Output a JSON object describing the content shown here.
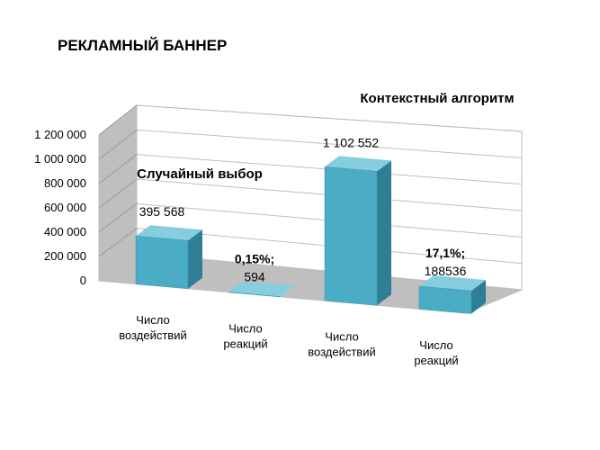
{
  "chart_data": {
    "type": "bar",
    "title": "РЕКЛАМНЫЙ БАННЕР",
    "ylim": [
      0,
      1200000
    ],
    "y_ticks": [
      "0",
      "200 000",
      "400 000",
      "600 000",
      "800 000",
      "1 000 000",
      "1 200 000"
    ],
    "groups": [
      {
        "label": "Случайный выбор"
      },
      {
        "label": "Контекстный алгоритм"
      }
    ],
    "categories": [
      [
        "Число",
        "воздействий"
      ],
      [
        "Число",
        "реакций"
      ],
      [
        "Число",
        "воздействий"
      ],
      [
        "Число",
        "реакций"
      ]
    ],
    "values": [
      395568,
      594,
      1102552,
      188536
    ],
    "data_labels": [
      {
        "pct": "",
        "value": "395 568"
      },
      {
        "pct": "0,15%;",
        "value": "594"
      },
      {
        "pct": "",
        "value": "1 102 552"
      },
      {
        "pct": "17,1%;",
        "value": "188536"
      }
    ],
    "grid": true,
    "colors": {
      "bar_front": "#4BACC6",
      "bar_side": "#2E7F95",
      "bar_top": "#86CDDF",
      "floor": "#BFBFBF",
      "wall": "#FFFFFF",
      "wall_side": "#BFBFBF",
      "grid": "#BFBFBF"
    }
  }
}
